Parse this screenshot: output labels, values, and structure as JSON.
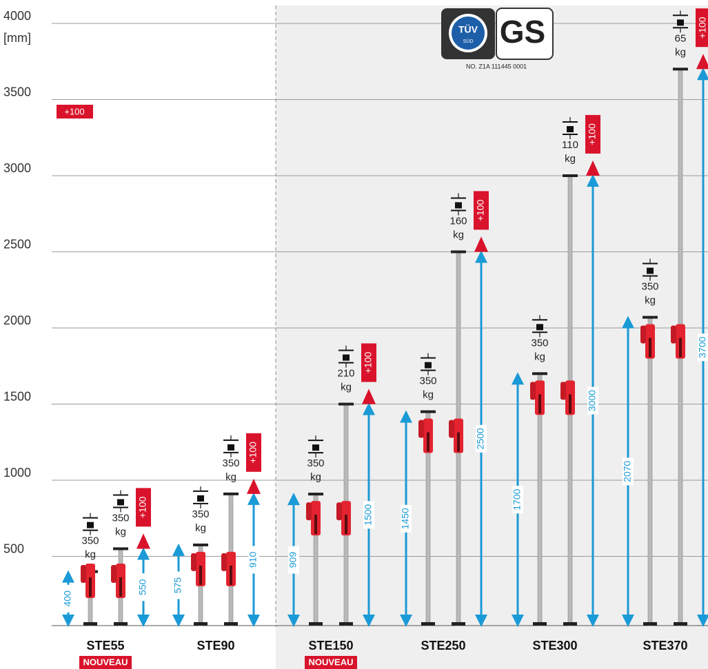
{
  "chart_data": {
    "type": "prop-range",
    "y_label": "[mm]",
    "ylim": [
      0,
      4000
    ],
    "yticks": [
      500,
      1000,
      1500,
      2000,
      2500,
      3000,
      3500,
      4000
    ],
    "grid": true,
    "extension": {
      "value": 100,
      "label": "+100"
    },
    "load_unit": "kg",
    "colors": {
      "range": "#1a9ad6",
      "extension": "#d9132b",
      "prop": "#b9b9b9",
      "body": "#e3232f"
    },
    "certificate": {
      "tuv": "TÜV",
      "sud": "SÜD",
      "gs": "GS",
      "number": "NO. Z1A 111445 0001"
    },
    "products": [
      {
        "name": "STE55",
        "badge": "NOUVEAU",
        "min": 400,
        "max": 550,
        "load_min": 350,
        "load_max": 350
      },
      {
        "name": "STE90",
        "min": 575,
        "max": 910,
        "load_min": 350,
        "load_max": 350
      },
      {
        "name": "STE150",
        "badge": "NOUVEAU",
        "min": 909,
        "max": 1500,
        "load_min": 350,
        "load_max": 210
      },
      {
        "name": "STE250",
        "min": 1450,
        "max": 2500,
        "load_min": 350,
        "load_max": 160
      },
      {
        "name": "STE300",
        "min": 1700,
        "max": 3000,
        "load_min": 350,
        "load_max": 110
      },
      {
        "name": "STE370",
        "min": 2070,
        "max": 3700,
        "load_min": 350,
        "load_max": 65
      }
    ]
  }
}
